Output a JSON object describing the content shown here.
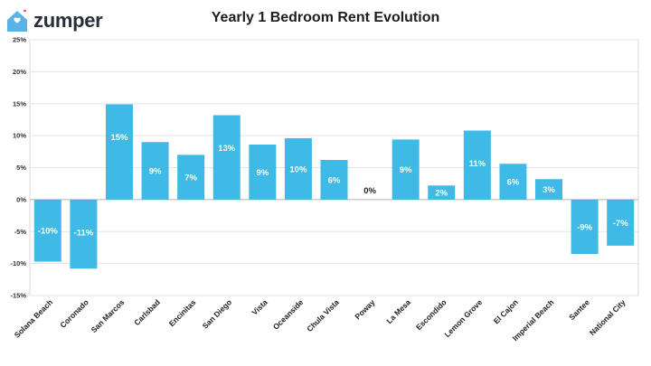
{
  "brand": {
    "name": "zumper",
    "accent": "#5ab2e6",
    "heart": "#e64a73"
  },
  "title": "Yearly 1 Bedroom Rent Evolution",
  "colors": {
    "bar": "#3fb9e5",
    "label_in_bar": "#ffffff",
    "label_outside": "#1e1e1e"
  },
  "chart_data": {
    "type": "bar",
    "title": "Yearly 1 Bedroom Rent Evolution",
    "xlabel": "",
    "ylabel": "",
    "ylim": [
      -15,
      25
    ],
    "yticks": [
      "25%",
      "20%",
      "15%",
      "10%",
      "5%",
      "0%",
      "-5%",
      "-10%",
      "-15%"
    ],
    "grid": true,
    "categories": [
      "Solana Beach",
      "Coronado",
      "San Marcos",
      "Carlsbad",
      "Encinitas",
      "San Diego",
      "Vista",
      "Oceanside",
      "Chula Vista",
      "Poway",
      "La Mesa",
      "Escondido",
      "Lemon Grove",
      "El Cajon",
      "Imperial Beach",
      "Santee",
      "National City"
    ],
    "values": [
      -9.7,
      -10.8,
      14.9,
      9.0,
      7.0,
      13.2,
      8.6,
      9.6,
      6.2,
      0.0,
      9.4,
      2.2,
      10.8,
      5.6,
      3.2,
      -8.5,
      -7.2
    ],
    "labels": [
      "-10%",
      "-11%",
      "15%",
      "9%",
      "7%",
      "13%",
      "9%",
      "10%",
      "6%",
      "0%",
      "9%",
      "2%",
      "11%",
      "6%",
      "3%",
      "-9%",
      "-7%"
    ]
  }
}
